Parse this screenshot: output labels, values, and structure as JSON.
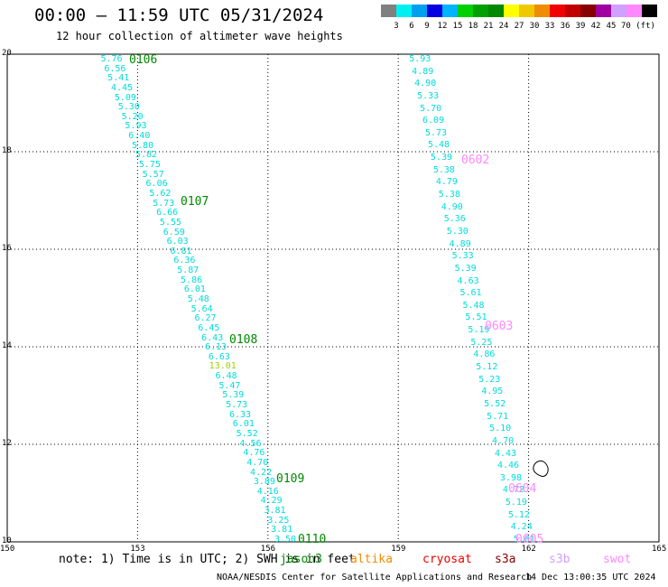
{
  "title": "00:00 – 11:59 UTC 05/31/2024",
  "subtitle": "12 hour collection of altimeter wave heights",
  "legend": {
    "colors": [
      "#808080",
      "#00f0f0",
      "#00a0f0",
      "#0000e0",
      "#00b4ff",
      "#00d000",
      "#00a000",
      "#008800",
      "#ffff00",
      "#f0c800",
      "#f08c00",
      "#f00000",
      "#c00000",
      "#880000",
      "#a000a0",
      "#d0a0ff",
      "#ff88ff",
      "#000000"
    ],
    "labels": [
      "3",
      "6",
      "9",
      "12",
      "15",
      "18",
      "21",
      "24",
      "27",
      "30",
      "33",
      "36",
      "39",
      "42",
      "45",
      "70 (ft)"
    ]
  },
  "axes": {
    "y_ticks": [
      "20",
      "18",
      "16",
      "14",
      "12",
      "10"
    ],
    "x_ticks": [
      "150",
      "153",
      "156",
      "159",
      "162",
      "165"
    ],
    "lon_range": [
      150,
      165
    ],
    "lat_range": [
      10,
      20
    ]
  },
  "tracks": [
    {
      "color": "#00dcdc",
      "lon_top": 152.4,
      "lon_bottom": 156.4,
      "values": [
        "5.76",
        "6.56",
        "5.41",
        "4.45",
        "5.09",
        "5.30",
        "5.20",
        "5.93",
        "6.40",
        "5.80",
        "5.82",
        "5.75",
        "5.57",
        "6.06",
        "5.62",
        "5.73",
        "6.66",
        "5.55",
        "6.59",
        "6.03",
        "6.81",
        "6.36",
        "5.87",
        "5.86",
        "6.01",
        "5.48",
        "5.64",
        "6.27",
        "6.45",
        "6.43",
        "6.13",
        "6.63",
        "13.01",
        "6.48",
        "5.47",
        "5.39",
        "5.73",
        "6.33",
        "6.01",
        "5.52",
        "4.56",
        "4.76",
        "4.70",
        "4.22",
        "3.89",
        "4.16",
        "4.29",
        "3.81",
        "3.25",
        "3.81",
        "3.50"
      ],
      "highlight": {
        "32": "#a0d000"
      }
    },
    {
      "color": "#00dcdc",
      "lon_top": 159.5,
      "lon_bottom": 161.9,
      "values": [
        "5.93",
        "4.89",
        "4.90",
        "5.33",
        "5.70",
        "6.09",
        "5.73",
        "5.48",
        "5.39",
        "5.38",
        "4.79",
        "5.38",
        "4.90",
        "5.36",
        "5.30",
        "4.89",
        "5.33",
        "5.39",
        "4.63",
        "5.61",
        "5.48",
        "5.51",
        "5.19",
        "5.25",
        "4.86",
        "5.12",
        "5.23",
        "4.95",
        "5.52",
        "5.71",
        "5.10",
        "4.70",
        "4.43",
        "4.46",
        "3.98",
        "4.72",
        "5.19",
        "5.12",
        "4.24",
        "5.01"
      ],
      "highlight": {}
    }
  ],
  "pass_labels": [
    {
      "text": "0106",
      "color": "#008800"
    },
    {
      "text": "0107",
      "color": "#008800"
    },
    {
      "text": "0108",
      "color": "#008800"
    },
    {
      "text": "0109",
      "color": "#008800"
    },
    {
      "text": "0110",
      "color": "#008800"
    },
    {
      "text": "0602",
      "color": "#ff88ff"
    },
    {
      "text": "0603",
      "color": "#ff88ff"
    },
    {
      "text": "0604",
      "color": "#ff88ff"
    },
    {
      "text": "0605",
      "color": "#ff88ff"
    }
  ],
  "note": "note: 1) Time is in UTC; 2) SWH is in feet",
  "satellites": [
    {
      "name": "jason3",
      "color": "#008800"
    },
    {
      "name": "altika",
      "color": "#f08c00"
    },
    {
      "name": "cryosat",
      "color": "#f00000"
    },
    {
      "name": "s3a",
      "color": "#880000"
    },
    {
      "name": "s3b",
      "color": "#d0a0ff"
    },
    {
      "name": "swot",
      "color": "#ff88ff"
    }
  ],
  "credit": "NOAA/NESDIS Center for Satellite Applications and Research",
  "timestamp": "14 Dec 13:00:35 UTC 2024"
}
